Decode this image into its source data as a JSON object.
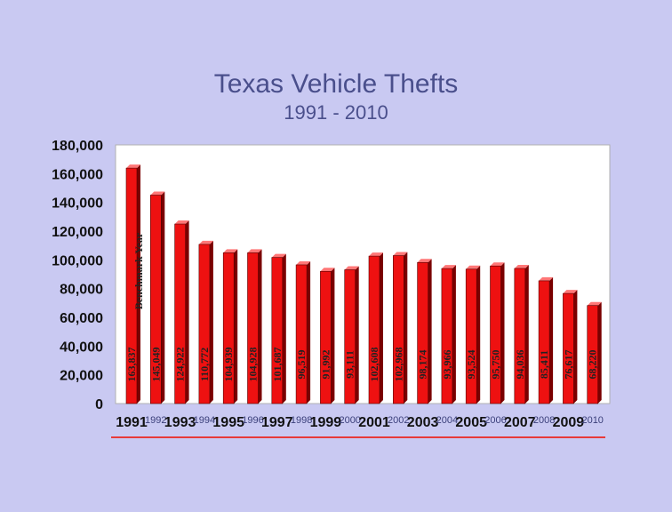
{
  "page": {
    "title": "Texas Vehicle Thefts",
    "subtitle": "1991 - 2010"
  },
  "colors": {
    "background": "#c9c9f2",
    "title": "#4a4f8c",
    "bar_front": "#ee1111",
    "bar_side": "#7a0000",
    "bar_top": "#ff7777",
    "plot_area": "#ffffff",
    "footer_line": "#e83a3a"
  },
  "chart_data": {
    "type": "bar",
    "title": "Texas Vehicle Thefts",
    "subtitle": "1991 - 2010",
    "ylim": [
      0,
      180000
    ],
    "yticks": [
      0,
      20000,
      40000,
      60000,
      80000,
      100000,
      120000,
      140000,
      160000,
      180000
    ],
    "ytick_labels": [
      "0",
      "20,000",
      "40,000",
      "60,000",
      "80,000",
      "100,000",
      "120,000",
      "140,000",
      "160,000",
      "180,000"
    ],
    "grid": false,
    "categories": [
      "1991",
      "1992",
      "1993",
      "1994",
      "1995",
      "1996",
      "1997",
      "1998",
      "1999",
      "2000",
      "2001",
      "2002",
      "2003",
      "2004",
      "2005",
      "2006",
      "2007",
      "2008",
      "2009",
      "2010"
    ],
    "category_label_style": [
      "large",
      "small",
      "large",
      "small",
      "large",
      "small",
      "large",
      "small",
      "large",
      "small",
      "large",
      "small",
      "large",
      "small",
      "large",
      "small",
      "large",
      "small",
      "large",
      "small"
    ],
    "values": [
      163837,
      145049,
      124922,
      110772,
      104939,
      104928,
      101687,
      96519,
      91992,
      93111,
      102608,
      102968,
      98174,
      93966,
      93524,
      95750,
      94036,
      85411,
      76617,
      68220
    ],
    "data_labels": [
      "163,837",
      "145,049",
      "124,922",
      "110,772",
      "104,939",
      "104,928",
      "101,687",
      "96,519",
      "91,992",
      "93,111",
      "102,608",
      "102,968",
      "98,174",
      "93,966",
      "93,524",
      "95,750",
      "94,036",
      "85,411",
      "76,617",
      "68,220"
    ],
    "annotations": [
      "Benchmark Year"
    ]
  }
}
